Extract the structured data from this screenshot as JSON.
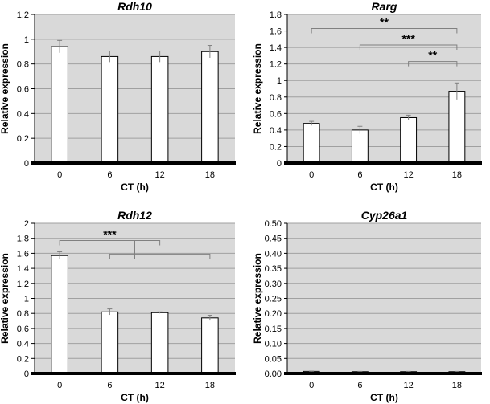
{
  "chart_data": [
    {
      "type": "bar",
      "title": "Rdh10",
      "xlabel": "CT (h)",
      "ylabel": "Relative expression",
      "categories": [
        "0",
        "6",
        "12",
        "18"
      ],
      "values": [
        0.94,
        0.86,
        0.86,
        0.9
      ],
      "errors": [
        0.05,
        0.045,
        0.045,
        0.05
      ],
      "ylim": [
        0,
        1.2
      ],
      "yticks": [
        0,
        0.2,
        0.4,
        0.6,
        0.8,
        1,
        1.2
      ],
      "ytick_labels": [
        "0",
        "0.2",
        "0.4",
        "0.6",
        "0.8",
        "1",
        "1.2"
      ],
      "significance": []
    },
    {
      "type": "bar",
      "title": "Rarg",
      "xlabel": "CT (h)",
      "ylabel": "Relative expression",
      "categories": [
        "0",
        "6",
        "12",
        "18"
      ],
      "values": [
        0.48,
        0.4,
        0.55,
        0.87
      ],
      "errors": [
        0.025,
        0.045,
        0.03,
        0.1
      ],
      "ylim": [
        0,
        1.8
      ],
      "yticks": [
        0,
        0.2,
        0.4,
        0.6,
        0.8,
        1,
        1.2,
        1.4,
        1.6,
        1.8
      ],
      "ytick_labels": [
        "0",
        "0.2",
        "0.4",
        "0.6",
        "0.8",
        "1",
        "1.2",
        "1.4",
        "1.6",
        "1.8"
      ],
      "significance": [
        {
          "from": 0,
          "to": 3,
          "y": 1.63,
          "label": "**"
        },
        {
          "from": 1,
          "to": 3,
          "y": 1.43,
          "label": "***"
        },
        {
          "from": 2,
          "to": 3,
          "y": 1.23,
          "label": "**"
        }
      ]
    },
    {
      "type": "bar",
      "title": "Rdh12",
      "xlabel": "CT (h)",
      "ylabel": "Relative expression",
      "categories": [
        "0",
        "6",
        "12",
        "18"
      ],
      "values": [
        1.57,
        0.82,
        0.81,
        0.74
      ],
      "errors": [
        0.05,
        0.04,
        0.01,
        0.035
      ],
      "ylim": [
        0,
        2
      ],
      "yticks": [
        0,
        0.2,
        0.4,
        0.6,
        0.8,
        1,
        1.2,
        1.4,
        1.6,
        1.8,
        2
      ],
      "ytick_labels": [
        "0",
        "0.2",
        "0.4",
        "0.6",
        "0.8",
        "1",
        "1.2",
        "1.4",
        "1.6",
        "1.8",
        "2"
      ],
      "significance": [
        {
          "from": 0,
          "to": 2,
          "y": 1.77,
          "label": "***"
        },
        {
          "from": 1,
          "to": 3,
          "y": 1.59,
          "label": ""
        }
      ]
    },
    {
      "type": "bar",
      "title": "Cyp26a1",
      "xlabel": "CT (h)",
      "ylabel": "Relative expression",
      "categories": [
        "0",
        "6",
        "12",
        "18"
      ],
      "values": [
        0.007,
        0.006,
        0.006,
        0.006
      ],
      "errors": [
        0.001,
        0.001,
        0.001,
        0.001
      ],
      "ylim": [
        0,
        0.5
      ],
      "yticks": [
        0,
        0.05,
        0.1,
        0.15,
        0.2,
        0.25,
        0.3,
        0.35,
        0.4,
        0.45,
        0.5
      ],
      "ytick_labels": [
        "0.00",
        "0.05",
        "0.10",
        "0.15",
        "0.20",
        "0.25",
        "0.30",
        "0.35",
        "0.40",
        "0.45",
        "0.50"
      ],
      "significance": []
    }
  ],
  "colors": {
    "plot_background": "#d9d9d9",
    "gridline": "#a0a0a0",
    "bar_fill": "#ffffff",
    "bar_stroke": "#000000",
    "error_bar": "#808080",
    "baseline": "#000000",
    "bracket": "#808080"
  }
}
